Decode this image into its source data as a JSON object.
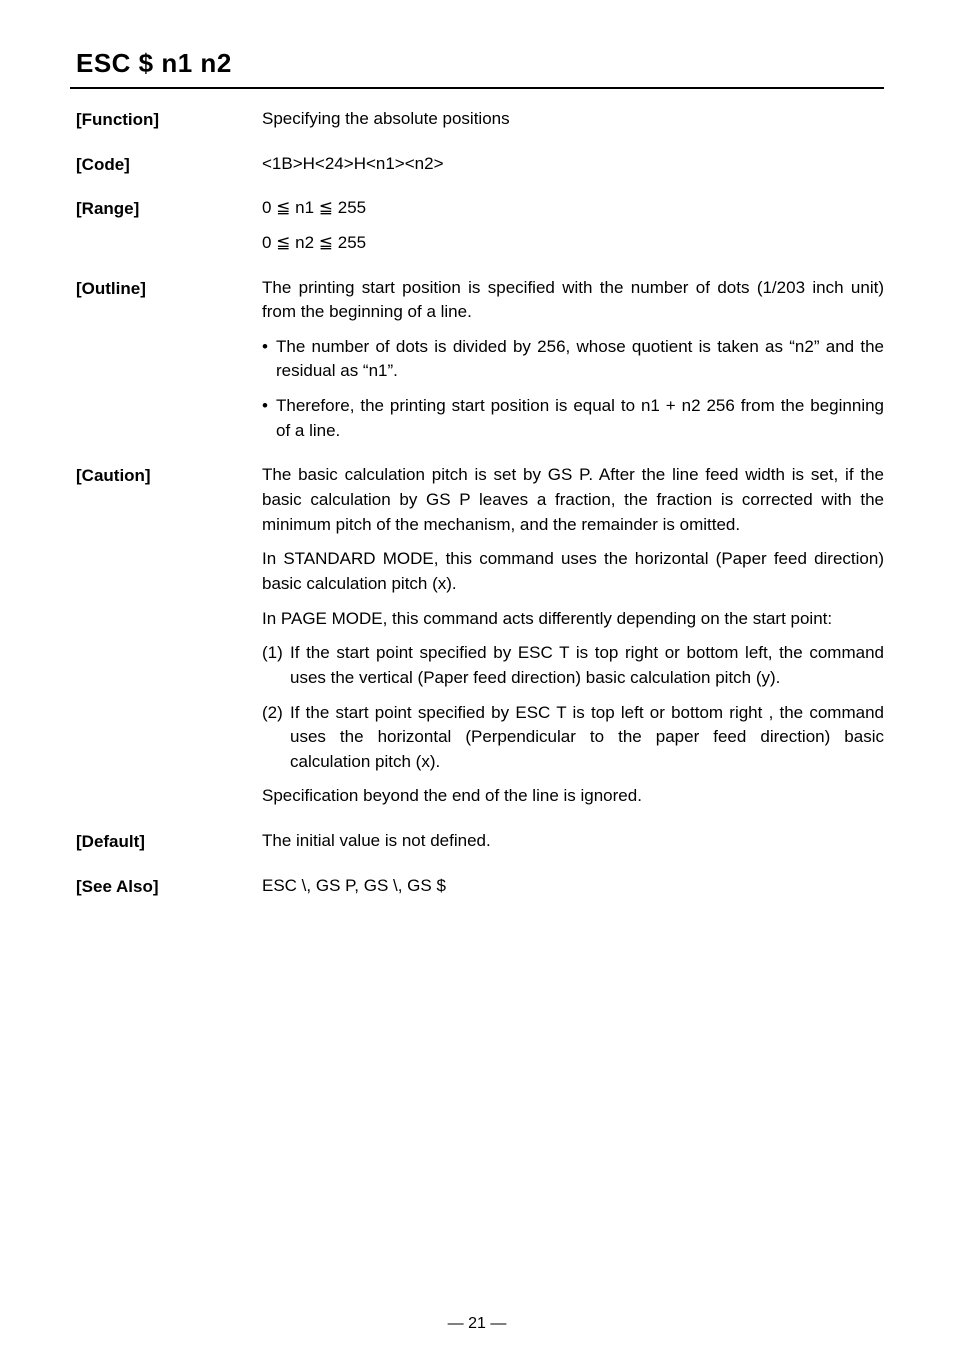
{
  "title": "ESC  $  n1  n2",
  "rows": {
    "function": {
      "label": "[Function]",
      "text": "Specifying the absolute positions"
    },
    "code": {
      "label": "[Code]",
      "text": "<1B>H<24>H<n1><n2>"
    },
    "range": {
      "label": "[Range]",
      "line1": "0 ≦ n1 ≦ 255",
      "line2": "0 ≦ n2 ≦ 255"
    },
    "outline": {
      "label": "[Outline]",
      "main": "The printing start position is specified with the number of dots (1/203 inch unit) from the beginning of a line.",
      "b1": "The number of dots is divided by 256, whose quotient is taken as “n2” and the residual as “n1”.",
      "b2": "Therefore, the printing start position is equal to n1 + n2    256 from the beginning of a line."
    },
    "caution": {
      "label": "[Caution]",
      "p1": "The basic calculation pitch is set by GS P. After the line feed width is set, if the basic calculation by GS P leaves a fraction, the fraction is corrected with the minimum pitch of the mechanism, and the remainder is omitted.",
      "p2": "In STANDARD MODE, this command uses the horizontal (Paper feed direction) basic calculation pitch (x).",
      "p3": "In PAGE MODE, this command acts differently depending on the start point:",
      "n1_num": "(1)",
      "n1_txt": "If the start point specified by ESC T is top right or bottom left, the command uses the vertical (Paper feed direction) basic calculation pitch (y).",
      "n2_num": "(2)",
      "n2_txt": "If the start point specified by ESC T is top left or bottom right , the command uses the horizontal (Perpendicular to the paper feed direction) basic calculation pitch (x).",
      "p4": "Specification beyond the end of the line is ignored."
    },
    "defaultv": {
      "label": "[Default]",
      "text": "The initial value is not defined."
    },
    "seealso": {
      "label": "[See Also]",
      "text": "ESC \\, GS P, GS \\, GS $"
    }
  },
  "pagenum": "— 21 —",
  "bullet_glyph": "•"
}
